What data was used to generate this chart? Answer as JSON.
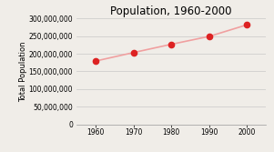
{
  "title": "Population, 1960-2000",
  "xlabel": "",
  "ylabel": "Total Population",
  "x": [
    1960,
    1970,
    1980,
    1990,
    2000
  ],
  "y": [
    179323175,
    203211926,
    226545805,
    248709873,
    281421906
  ],
  "ylim": [
    0,
    300000000
  ],
  "xlim": [
    1955,
    2005
  ],
  "yticks": [
    0,
    50000000,
    100000000,
    150000000,
    200000000,
    250000000,
    300000000
  ],
  "xticks": [
    1960,
    1970,
    1980,
    1990,
    2000
  ],
  "line_color": "#f0a0a0",
  "marker_color": "#dd2222",
  "marker_size": 4.5,
  "line_width": 1.2,
  "background_color": "#f0ede8",
  "title_fontsize": 8.5,
  "axis_label_fontsize": 6,
  "tick_fontsize": 5.5,
  "grid_color": "#c8c8c8"
}
